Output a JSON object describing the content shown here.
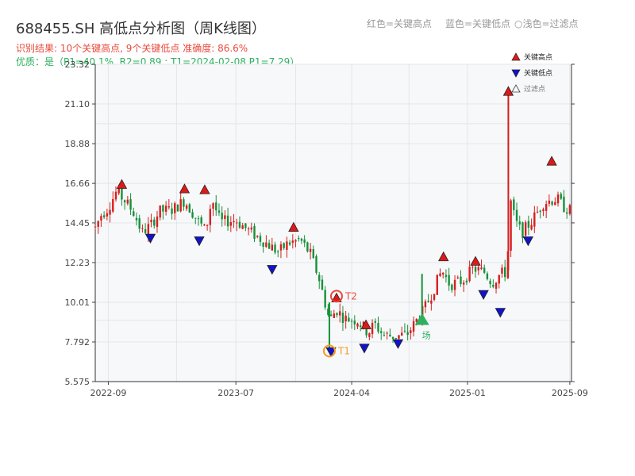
{
  "header": {
    "title": "688455.SH 高低点分析图（周K线图）",
    "summary": "识别结果: 10个关键高点, 9个关键低点   准确度: 86.6%",
    "quality": "优质：是（P1=40.1%, R2=0.89 ; T1=2024-02-08 P1=7.29）"
  },
  "top_legend": {
    "red": "红色=关键高点",
    "blue": "蓝色=关键低点",
    "hollow": "○浅色=过滤点"
  },
  "colors": {
    "up": "#d81e1e",
    "down": "#16913a",
    "high_marker": "#e01818",
    "low_marker": "#1212cc",
    "t_marker": "#f59a23",
    "green_marker": "#2fb060",
    "plot_bg": "#f7f8fa",
    "grid": "#e3e6ea"
  },
  "chart_data": {
    "type": "candlestick",
    "x_axis": {
      "type": "date",
      "min": "2022-08-01",
      "max": "2025-09-05",
      "tick_labels": [
        "2022-09",
        "2023-07",
        "2024-04",
        "2025-01",
        "2025-09"
      ]
    },
    "y_axis": {
      "min": 5.575,
      "max": 23.32,
      "tick_labels": [
        "5.575",
        "7.792",
        "10.01",
        "12.23",
        "14.45",
        "16.66",
        "18.88",
        "21.10",
        "23.32"
      ]
    },
    "grid": true,
    "legend": {
      "position": "top-right",
      "entries": [
        {
          "label": "关键高点",
          "marker": "high"
        },
        {
          "label": "关键低点",
          "marker": "low"
        },
        {
          "label": "过滤点",
          "marker": "filtered"
        }
      ]
    },
    "series_shape": [
      [
        "2022-08-01",
        14.2
      ],
      [
        "2022-08-15",
        14.9
      ],
      [
        "2022-09-01",
        15.3
      ],
      [
        "2022-09-20",
        16.2
      ],
      [
        "2022-10-10",
        15.7
      ],
      [
        "2022-11-01",
        15.0
      ],
      [
        "2022-11-20",
        13.9
      ],
      [
        "2022-12-10",
        14.3
      ],
      [
        "2023-01-01",
        15.1
      ],
      [
        "2023-02-01",
        15.2
      ],
      [
        "2023-03-01",
        15.7
      ],
      [
        "2023-04-01",
        14.6
      ],
      [
        "2023-04-20",
        14.0
      ],
      [
        "2023-05-05",
        15.8
      ],
      [
        "2023-05-25",
        14.5
      ],
      [
        "2023-07-01",
        14.6
      ],
      [
        "2023-08-01",
        14.0
      ],
      [
        "2023-09-01",
        13.5
      ],
      [
        "2023-10-10",
        12.8
      ],
      [
        "2023-11-01",
        13.3
      ],
      [
        "2023-12-01",
        13.5
      ],
      [
        "2023-12-25",
        12.7
      ],
      [
        "2024-01-15",
        11.3
      ],
      [
        "2024-02-08",
        9.0
      ],
      [
        "2024-02-25",
        9.6
      ],
      [
        "2024-03-15",
        9.1
      ],
      [
        "2024-04-15",
        9.0
      ],
      [
        "2024-05-10",
        8.3
      ],
      [
        "2024-05-25",
        8.8
      ],
      [
        "2024-06-15",
        8.2
      ],
      [
        "2024-07-10",
        8.1
      ],
      [
        "2024-08-10",
        8.2
      ],
      [
        "2024-09-20",
        9.6
      ],
      [
        "2024-10-10",
        10.6
      ],
      [
        "2024-11-01",
        11.8
      ],
      [
        "2024-11-20",
        11.0
      ],
      [
        "2024-12-20",
        11.2
      ],
      [
        "2025-01-15",
        11.9
      ],
      [
        "2025-02-10",
        11.7
      ],
      [
        "2025-03-01",
        11.1
      ],
      [
        "2025-03-20",
        11.6
      ],
      [
        "2025-04-05",
        11.7
      ],
      [
        "2025-04-12",
        15.8
      ],
      [
        "2025-04-25",
        14.5
      ],
      [
        "2025-05-10",
        13.9
      ],
      [
        "2025-06-01",
        14.5
      ],
      [
        "2025-07-01",
        15.6
      ],
      [
        "2025-08-01",
        15.8
      ],
      [
        "2025-08-20",
        15.3
      ],
      [
        "2025-09-05",
        15.1
      ]
    ],
    "key_highs": [
      {
        "date": "2022-10-03",
        "price": 16.6
      },
      {
        "date": "2023-03-01",
        "price": 16.35
      },
      {
        "date": "2023-04-18",
        "price": 16.3
      },
      {
        "date": "2023-11-15",
        "price": 14.2
      },
      {
        "date": "2024-05-05",
        "price": 8.75
      },
      {
        "date": "2024-11-05",
        "price": 12.55
      },
      {
        "date": "2025-01-20",
        "price": 12.3
      },
      {
        "date": "2025-04-08",
        "price": 21.8
      },
      {
        "date": "2025-07-20",
        "price": 17.9
      },
      {
        "date": "2024-02-25",
        "price": 10.25
      }
    ],
    "key_lows": [
      {
        "date": "2022-12-10",
        "price": 13.6
      },
      {
        "date": "2023-04-05",
        "price": 13.45
      },
      {
        "date": "2023-09-25",
        "price": 11.85
      },
      {
        "date": "2024-02-12",
        "price": 7.25
      },
      {
        "date": "2024-05-01",
        "price": 7.45
      },
      {
        "date": "2024-07-20",
        "price": 7.7
      },
      {
        "date": "2025-02-08",
        "price": 10.45
      },
      {
        "date": "2025-03-20",
        "price": 9.45
      },
      {
        "date": "2025-05-25",
        "price": 13.45
      }
    ],
    "annotations": [
      {
        "label": "T2",
        "date": "2024-02-25",
        "price": 10.35,
        "kind": "ring-red"
      },
      {
        "label": "T1",
        "date": "2024-02-08",
        "price": 7.29,
        "kind": "ring-orange"
      },
      {
        "label": "场",
        "date": "2024-09-15",
        "price": 9.05,
        "kind": "green-triangle"
      }
    ]
  }
}
